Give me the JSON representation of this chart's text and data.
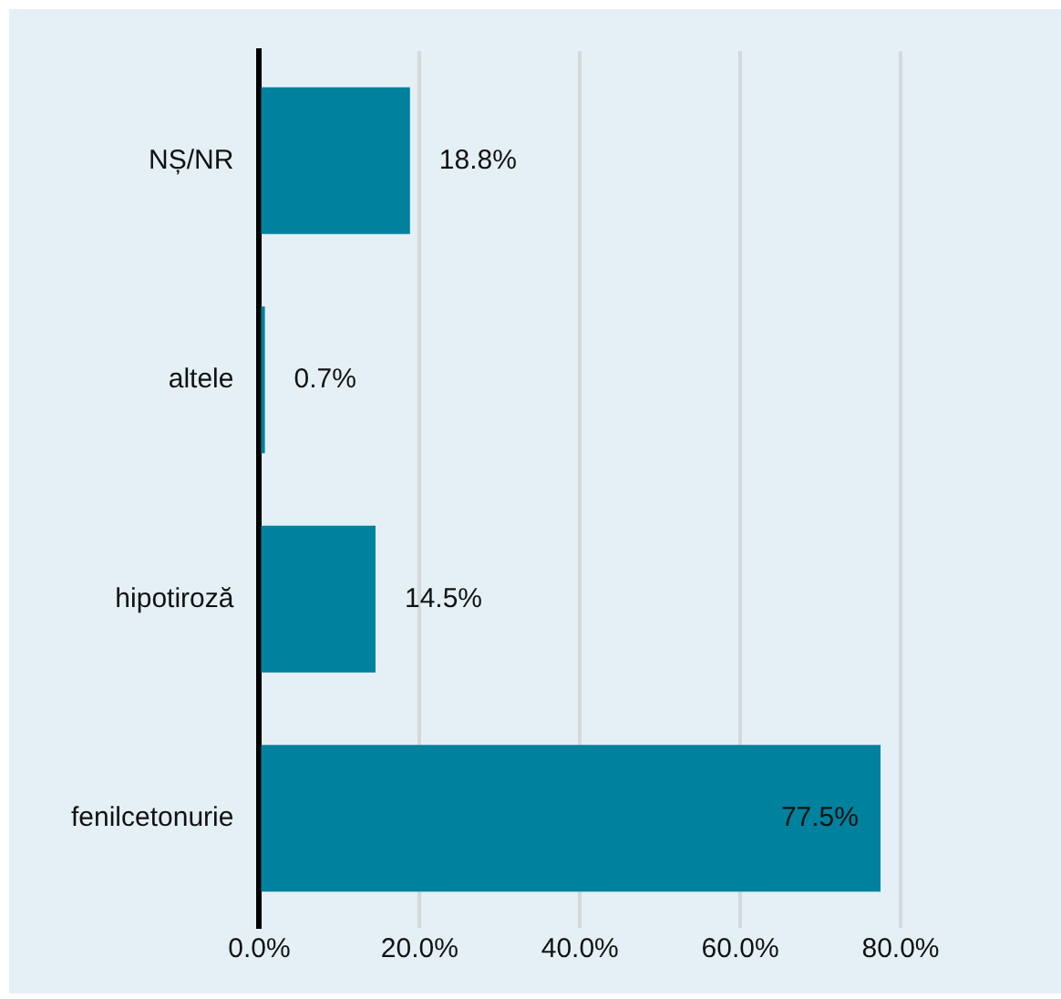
{
  "chart_data": {
    "type": "bar",
    "orientation": "horizontal",
    "categories": [
      "NȘ/NR",
      "altele",
      "hipotiroză",
      "fenilcetonurie"
    ],
    "values": [
      18.8,
      0.7,
      14.5,
      77.5
    ],
    "color": "#00819e",
    "value_labels": [
      "18.8%",
      "0.7%",
      "14.5%",
      "77.5%"
    ],
    "xlim": [
      0,
      80
    ],
    "xticks": [
      {
        "value": 0,
        "label": "0.0%"
      },
      {
        "value": 20,
        "label": "20.0%"
      },
      {
        "value": 40,
        "label": "40.0%"
      },
      {
        "value": 60,
        "label": "60.0%"
      },
      {
        "value": 80,
        "label": "80.0%"
      }
    ],
    "grid": "x",
    "legend": false
  }
}
